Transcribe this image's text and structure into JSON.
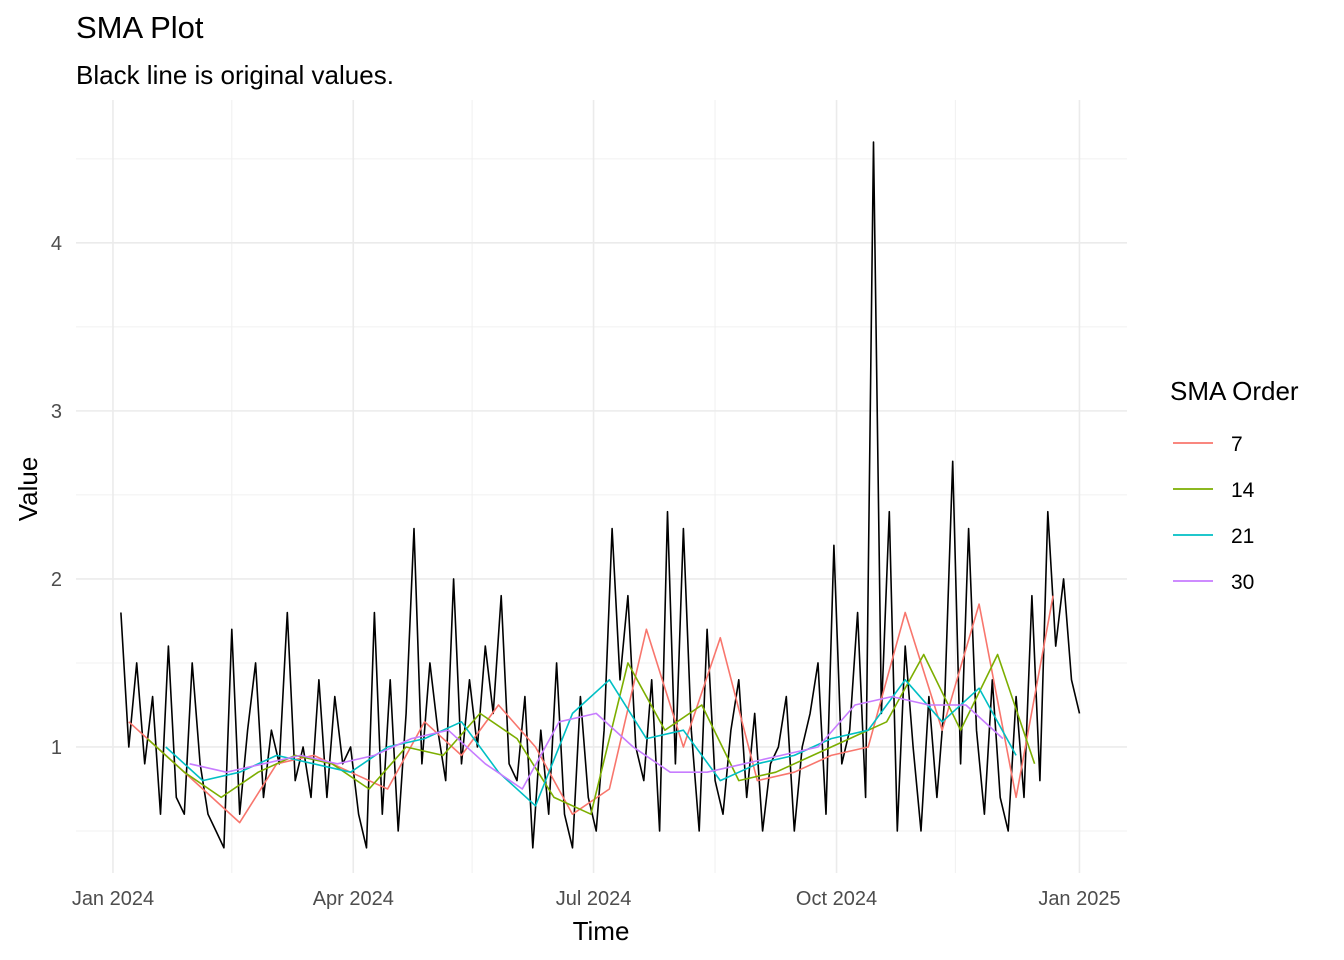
{
  "chart_data": {
    "type": "line",
    "title": "SMA Plot",
    "subtitle": "Black line is original values.",
    "xlabel": "Time",
    "ylabel": "Value",
    "x_ticks": [
      {
        "date": "2024-01-01",
        "label": "Jan 2024"
      },
      {
        "date": "2024-04-01",
        "label": "Apr 2024"
      },
      {
        "date": "2024-07-01",
        "label": "Jul 2024"
      },
      {
        "date": "2024-10-01",
        "label": "Oct 2024"
      },
      {
        "date": "2025-01-01",
        "label": "Jan 2025"
      }
    ],
    "x_minor_ticks": [
      "2024-02-15",
      "2024-05-16",
      "2024-08-16",
      "2024-11-15"
    ],
    "xlim": [
      "2023-12-18",
      "2025-01-19"
    ],
    "y_ticks": [
      1,
      2,
      3,
      4
    ],
    "ylim": [
      0.25,
      4.85
    ],
    "grid": true,
    "original_color": "#000000",
    "legend": {
      "title": "SMA Order",
      "position": "right",
      "entries": [
        {
          "label": "7",
          "color": "#F8766D"
        },
        {
          "label": "14",
          "color": "#7CAE00"
        },
        {
          "label": "21",
          "color": "#00BFC4"
        },
        {
          "label": "30",
          "color": "#C77CFF"
        }
      ]
    },
    "original": {
      "x": [
        "2024-01-04",
        "2024-01-07",
        "2024-01-10",
        "2024-01-13",
        "2024-01-16",
        "2024-01-19",
        "2024-01-22",
        "2024-01-25",
        "2024-01-28",
        "2024-01-31",
        "2024-02-03",
        "2024-02-06",
        "2024-02-09",
        "2024-02-12",
        "2024-02-15",
        "2024-02-18",
        "2024-02-21",
        "2024-02-24",
        "2024-02-27",
        "2024-03-01",
        "2024-03-04",
        "2024-03-07",
        "2024-03-10",
        "2024-03-13",
        "2024-03-16",
        "2024-03-19",
        "2024-03-22",
        "2024-03-25",
        "2024-03-28",
        "2024-03-31",
        "2024-04-03",
        "2024-04-06",
        "2024-04-09",
        "2024-04-12",
        "2024-04-15",
        "2024-04-18",
        "2024-04-21",
        "2024-04-24",
        "2024-04-27",
        "2024-04-30",
        "2024-05-03",
        "2024-05-06",
        "2024-05-09",
        "2024-05-12",
        "2024-05-15",
        "2024-05-18",
        "2024-05-21",
        "2024-05-24",
        "2024-05-27",
        "2024-05-30",
        "2024-06-02",
        "2024-06-05",
        "2024-06-08",
        "2024-06-11",
        "2024-06-14",
        "2024-06-17",
        "2024-06-20",
        "2024-06-23",
        "2024-06-26",
        "2024-06-29",
        "2024-07-02",
        "2024-07-05",
        "2024-07-08",
        "2024-07-11",
        "2024-07-14",
        "2024-07-17",
        "2024-07-20",
        "2024-07-23",
        "2024-07-26",
        "2024-07-29",
        "2024-08-01",
        "2024-08-04",
        "2024-08-07",
        "2024-08-10",
        "2024-08-13",
        "2024-08-16",
        "2024-08-19",
        "2024-08-22",
        "2024-08-25",
        "2024-08-28",
        "2024-08-31",
        "2024-09-03",
        "2024-09-06",
        "2024-09-09",
        "2024-09-12",
        "2024-09-15",
        "2024-09-18",
        "2024-09-21",
        "2024-09-24",
        "2024-09-27",
        "2024-09-30",
        "2024-10-03",
        "2024-10-06",
        "2024-10-09",
        "2024-10-12",
        "2024-10-15",
        "2024-10-18",
        "2024-10-21",
        "2024-10-24",
        "2024-10-27",
        "2024-10-30",
        "2024-11-02",
        "2024-11-05",
        "2024-11-08",
        "2024-11-11",
        "2024-11-14",
        "2024-11-17",
        "2024-11-20",
        "2024-11-23",
        "2024-11-26",
        "2024-11-29",
        "2024-12-02",
        "2024-12-05",
        "2024-12-08",
        "2024-12-11",
        "2024-12-14",
        "2024-12-17",
        "2024-12-20",
        "2024-12-23",
        "2024-12-26",
        "2024-12-29",
        "2025-01-01"
      ],
      "y": [
        1.8,
        1.0,
        1.5,
        0.9,
        1.3,
        0.6,
        1.6,
        0.7,
        0.6,
        1.5,
        0.9,
        0.6,
        0.5,
        0.4,
        1.7,
        0.6,
        1.1,
        1.5,
        0.7,
        1.1,
        0.9,
        1.8,
        0.8,
        1.0,
        0.7,
        1.4,
        0.7,
        1.3,
        0.9,
        1.0,
        0.6,
        0.4,
        1.8,
        0.6,
        1.4,
        0.5,
        1.2,
        2.3,
        0.9,
        1.5,
        1.1,
        0.8,
        2.0,
        0.9,
        1.4,
        1.0,
        1.6,
        1.2,
        1.9,
        0.9,
        0.8,
        1.3,
        0.4,
        1.1,
        0.6,
        1.5,
        0.6,
        0.4,
        1.3,
        0.7,
        0.5,
        1.1,
        2.3,
        1.4,
        1.9,
        1.0,
        0.8,
        1.4,
        0.5,
        2.4,
        0.9,
        2.3,
        1.1,
        0.5,
        1.7,
        0.8,
        0.6,
        1.1,
        1.4,
        0.7,
        1.2,
        0.5,
        0.9,
        1.0,
        1.3,
        0.5,
        1.0,
        1.2,
        1.5,
        0.6,
        2.2,
        0.9,
        1.1,
        1.8,
        0.7,
        4.6,
        1.2,
        2.4,
        0.5,
        1.6,
        1.0,
        0.5,
        1.3,
        0.7,
        1.3,
        2.7,
        0.9,
        2.3,
        1.1,
        0.6,
        1.4,
        0.7,
        0.5,
        1.3,
        0.7,
        1.9,
        0.8,
        2.4,
        1.6,
        2.0,
        1.4,
        1.2
      ]
    },
    "series": [
      {
        "name": "7",
        "x": [
          "2024-01-07",
          "2024-01-21",
          "2024-02-04",
          "2024-02-18",
          "2024-03-03",
          "2024-03-17",
          "2024-03-31",
          "2024-04-14",
          "2024-04-28",
          "2024-05-12",
          "2024-05-26",
          "2024-06-09",
          "2024-06-23",
          "2024-07-07",
          "2024-07-21",
          "2024-08-04",
          "2024-08-18",
          "2024-09-01",
          "2024-09-15",
          "2024-09-29",
          "2024-10-13",
          "2024-10-27",
          "2024-11-10",
          "2024-11-24",
          "2024-12-08",
          "2024-12-22"
        ],
        "y": [
          1.15,
          0.95,
          0.75,
          0.55,
          0.9,
          0.95,
          0.85,
          0.75,
          1.15,
          0.95,
          1.25,
          1.0,
          0.6,
          0.75,
          1.7,
          1.0,
          1.65,
          0.8,
          0.85,
          0.95,
          1.0,
          1.8,
          1.1,
          1.85,
          0.7,
          1.9
        ]
      },
      {
        "name": "14",
        "x": [
          "2024-01-14",
          "2024-01-28",
          "2024-02-11",
          "2024-02-25",
          "2024-03-10",
          "2024-03-24",
          "2024-04-07",
          "2024-04-21",
          "2024-05-05",
          "2024-05-19",
          "2024-06-02",
          "2024-06-16",
          "2024-06-30",
          "2024-07-14",
          "2024-07-28",
          "2024-08-11",
          "2024-08-25",
          "2024-09-08",
          "2024-09-22",
          "2024-10-06",
          "2024-10-20",
          "2024-11-03",
          "2024-11-17",
          "2024-12-01",
          "2024-12-15"
        ],
        "y": [
          1.05,
          0.85,
          0.7,
          0.85,
          0.95,
          0.9,
          0.75,
          1.0,
          0.95,
          1.2,
          1.05,
          0.7,
          0.6,
          1.5,
          1.1,
          1.25,
          0.8,
          0.85,
          0.95,
          1.05,
          1.15,
          1.55,
          1.1,
          1.55,
          0.9
        ]
      },
      {
        "name": "21",
        "x": [
          "2024-01-21",
          "2024-02-04",
          "2024-02-18",
          "2024-03-03",
          "2024-03-17",
          "2024-03-31",
          "2024-04-14",
          "2024-04-28",
          "2024-05-12",
          "2024-05-26",
          "2024-06-09",
          "2024-06-23",
          "2024-07-07",
          "2024-07-21",
          "2024-08-04",
          "2024-08-18",
          "2024-09-01",
          "2024-09-15",
          "2024-09-29",
          "2024-10-13",
          "2024-10-27",
          "2024-11-10",
          "2024-11-24",
          "2024-12-08"
        ],
        "y": [
          1.0,
          0.8,
          0.85,
          0.95,
          0.9,
          0.85,
          1.0,
          1.05,
          1.15,
          0.85,
          0.65,
          1.2,
          1.4,
          1.05,
          1.1,
          0.8,
          0.9,
          0.95,
          1.05,
          1.1,
          1.4,
          1.15,
          1.35,
          0.95
        ]
      },
      {
        "name": "30",
        "x": [
          "2024-01-30",
          "2024-02-13",
          "2024-02-27",
          "2024-03-12",
          "2024-03-26",
          "2024-04-09",
          "2024-04-23",
          "2024-05-07",
          "2024-05-21",
          "2024-06-04",
          "2024-06-18",
          "2024-07-02",
          "2024-07-16",
          "2024-07-30",
          "2024-08-13",
          "2024-08-27",
          "2024-09-10",
          "2024-09-24",
          "2024-10-08",
          "2024-10-22",
          "2024-11-05",
          "2024-11-19",
          "2024-12-03"
        ],
        "y": [
          0.9,
          0.85,
          0.9,
          0.95,
          0.9,
          0.95,
          1.05,
          1.1,
          0.9,
          0.75,
          1.15,
          1.2,
          1.0,
          0.85,
          0.85,
          0.9,
          0.95,
          1.0,
          1.25,
          1.3,
          1.25,
          1.25,
          1.05
        ]
      }
    ]
  }
}
